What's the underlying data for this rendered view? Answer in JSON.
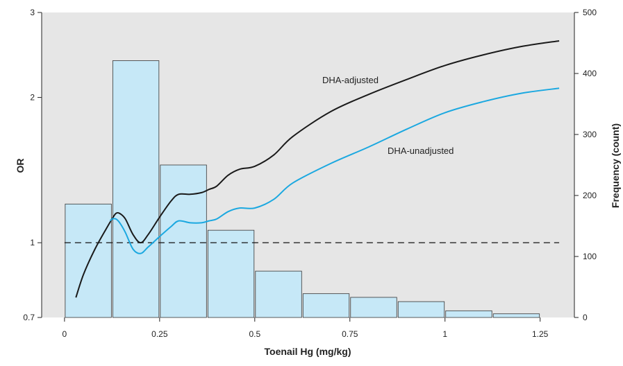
{
  "chart_data": {
    "type": "bar",
    "xlabel": "Toenail Hg (mg/kg)",
    "ylabel_left": "OR",
    "ylabel_right": "Frequency (count)",
    "x_ticks": [
      "0",
      "0.25",
      "0.5",
      "0.75",
      "1",
      "1.25"
    ],
    "x_tick_values": [
      0,
      0.25,
      0.5,
      0.75,
      1.0,
      1.25
    ],
    "xlim": [
      -0.06,
      1.34
    ],
    "y_left": {
      "scale": "log",
      "lim": [
        0.7,
        3
      ],
      "ticks": [
        "0.7",
        "1",
        "2",
        "3"
      ],
      "tick_values": [
        0.7,
        1,
        2,
        3
      ]
    },
    "y_right": {
      "lim": [
        0,
        500
      ],
      "ticks": [
        "0",
        "100",
        "200",
        "300",
        "400",
        "500"
      ],
      "tick_values": [
        0,
        100,
        200,
        300,
        400,
        500
      ]
    },
    "histogram": {
      "bin_width": 0.125,
      "bin_starts": [
        0,
        0.125,
        0.25,
        0.375,
        0.5,
        0.625,
        0.75,
        0.875,
        1.0,
        1.125
      ],
      "counts": [
        186,
        421,
        250,
        143,
        76,
        39,
        33,
        26,
        11,
        6
      ],
      "color": "#c6e8f7"
    },
    "reference_line": {
      "y": 1,
      "style": "dashed"
    },
    "series": [
      {
        "name": "DHA-adjusted",
        "color": "#1a1a1a",
        "x": [
          0.03,
          0.05,
          0.08,
          0.11,
          0.125,
          0.135,
          0.145,
          0.16,
          0.18,
          0.2,
          0.22,
          0.25,
          0.28,
          0.3,
          0.33,
          0.36,
          0.38,
          0.4,
          0.43,
          0.46,
          0.5,
          0.55,
          0.6,
          0.7,
          0.8,
          0.9,
          1.0,
          1.1,
          1.2,
          1.3
        ],
        "y": [
          0.77,
          0.86,
          0.97,
          1.07,
          1.12,
          1.15,
          1.15,
          1.12,
          1.04,
          1.0,
          1.04,
          1.13,
          1.22,
          1.26,
          1.26,
          1.27,
          1.29,
          1.31,
          1.38,
          1.42,
          1.44,
          1.52,
          1.66,
          1.87,
          2.03,
          2.18,
          2.33,
          2.45,
          2.55,
          2.62
        ]
      },
      {
        "name": "DHA-unadjusted",
        "color": "#1ba8e0",
        "x": [
          0.12,
          0.125,
          0.135,
          0.145,
          0.16,
          0.18,
          0.2,
          0.22,
          0.25,
          0.28,
          0.3,
          0.33,
          0.36,
          0.38,
          0.4,
          0.43,
          0.46,
          0.5,
          0.55,
          0.6,
          0.7,
          0.8,
          0.9,
          1.0,
          1.1,
          1.2,
          1.3
        ],
        "y": [
          1.11,
          1.12,
          1.12,
          1.1,
          1.05,
          0.97,
          0.95,
          0.98,
          1.03,
          1.08,
          1.11,
          1.1,
          1.1,
          1.11,
          1.12,
          1.16,
          1.18,
          1.18,
          1.23,
          1.33,
          1.46,
          1.58,
          1.72,
          1.86,
          1.96,
          2.04,
          2.09
        ]
      }
    ],
    "annotations": [
      "DHA-adjusted",
      "DHA-unadjusted"
    ],
    "grid": false,
    "legend": "none",
    "background": "#e6e6e6"
  }
}
